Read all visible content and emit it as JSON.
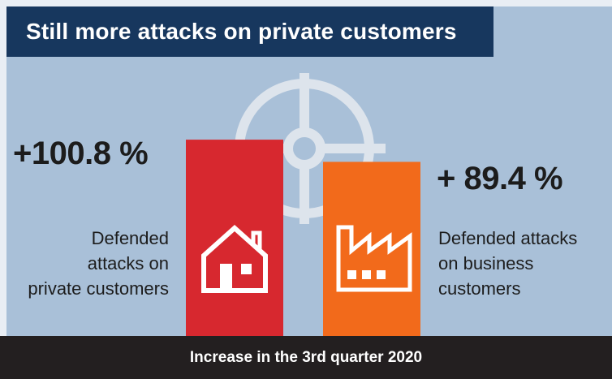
{
  "title": "Still more attacks on private customers",
  "footer_text": "Increase in the 3rd quarter 2020",
  "colors": {
    "panel": "#a9c0d8",
    "title_bar": "#17375e",
    "private_bar": "#d7282f",
    "business_bar": "#f26a1b",
    "footer": "#231f20",
    "target": "#dde4ec"
  },
  "icons": {
    "private_customers": "house-icon",
    "business_customers": "factory-icon",
    "background": "crosshair-icon"
  },
  "chart_data": {
    "type": "bar",
    "title": "Still more attacks on private customers",
    "subtitle": "Increase in the 3rd quarter 2020",
    "unit": "%",
    "ylim": [
      0,
      110
    ],
    "grid": false,
    "bars": [
      {
        "id": "private",
        "value": 100.8,
        "value_label": "+100.8 %",
        "label_lines": [
          "Defended",
          "attacks on",
          "private customers"
        ]
      },
      {
        "id": "business",
        "value": 89.4,
        "value_label": "+ 89.4 %",
        "label_lines": [
          "Defended attacks",
          "on business",
          "customers"
        ]
      }
    ]
  }
}
